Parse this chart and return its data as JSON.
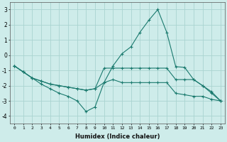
{
  "xlabel": "Humidex (Indice chaleur)",
  "background_color": "#ceecea",
  "grid_color": "#aad4d0",
  "line_color": "#1a7a6e",
  "xlim": [
    -0.5,
    23.5
  ],
  "ylim": [
    -4.5,
    3.5
  ],
  "yticks": [
    -4,
    -3,
    -2,
    -1,
    0,
    1,
    2,
    3
  ],
  "xticks": [
    0,
    1,
    2,
    3,
    4,
    5,
    6,
    7,
    8,
    9,
    10,
    11,
    12,
    13,
    14,
    15,
    16,
    17,
    18,
    19,
    20,
    21,
    22,
    23
  ],
  "series": [
    {
      "x": [
        0,
        1,
        2,
        3,
        4,
        5,
        6,
        7,
        8,
        9,
        10,
        11,
        12,
        13,
        14,
        15,
        16,
        17,
        18,
        19,
        20,
        21,
        22,
        23
      ],
      "y": [
        -0.7,
        -1.1,
        -1.5,
        -1.7,
        -1.9,
        -2.0,
        -2.1,
        -2.2,
        -2.3,
        -2.2,
        -1.8,
        -0.7,
        0.1,
        0.55,
        1.5,
        2.3,
        3.0,
        1.5,
        -0.75,
        -0.8,
        -1.6,
        -2.0,
        -2.4,
        -3.0
      ]
    },
    {
      "x": [
        0,
        1,
        2,
        3,
        4,
        5,
        6,
        7,
        8,
        9,
        10,
        11,
        12,
        13,
        14,
        15,
        16,
        17,
        18,
        19,
        20,
        21,
        22,
        23
      ],
      "y": [
        -0.7,
        -1.1,
        -1.5,
        -1.7,
        -1.9,
        -2.0,
        -2.1,
        -2.2,
        -2.3,
        -2.2,
        -0.85,
        -0.85,
        -0.85,
        -0.85,
        -0.85,
        -0.85,
        -0.85,
        -0.85,
        -1.6,
        -1.6,
        -1.6,
        -2.0,
        -2.5,
        -3.0
      ]
    },
    {
      "x": [
        0,
        1,
        2,
        3,
        4,
        5,
        6,
        7,
        8,
        9,
        10,
        11,
        12,
        13,
        14,
        15,
        16,
        17,
        18,
        19,
        20,
        21,
        22,
        23
      ],
      "y": [
        -0.7,
        -1.1,
        -1.5,
        -1.9,
        -2.2,
        -2.5,
        -2.7,
        -3.0,
        -3.7,
        -3.4,
        -1.8,
        -1.6,
        -1.8,
        -1.8,
        -1.8,
        -1.8,
        -1.8,
        -1.8,
        -2.5,
        -2.6,
        -2.7,
        -2.7,
        -2.9,
        -3.0
      ]
    }
  ]
}
